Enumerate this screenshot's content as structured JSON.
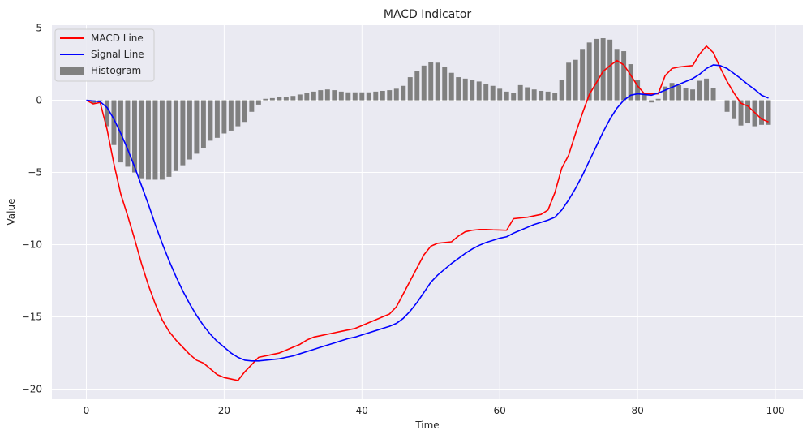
{
  "chart_data": {
    "type": "line",
    "title": "MACD Indicator",
    "xlabel": "Time",
    "ylabel": "Value",
    "xlim": [
      -5,
      104
    ],
    "ylim": [
      -20.7,
      5.2
    ],
    "xticks": [
      0,
      20,
      40,
      60,
      80,
      100
    ],
    "yticks": [
      5,
      0,
      -5,
      -10,
      -15,
      -20
    ],
    "ytick_labels": [
      "5",
      "0",
      "−5",
      "−10",
      "−15",
      "−20"
    ],
    "grid": true,
    "legend_position": "top-left",
    "x": [
      0,
      1,
      2,
      3,
      4,
      5,
      6,
      7,
      8,
      9,
      10,
      11,
      12,
      13,
      14,
      15,
      16,
      17,
      18,
      19,
      20,
      21,
      22,
      23,
      24,
      25,
      26,
      27,
      28,
      29,
      30,
      31,
      32,
      33,
      34,
      35,
      36,
      37,
      38,
      39,
      40,
      41,
      42,
      43,
      44,
      45,
      46,
      47,
      48,
      49,
      50,
      51,
      52,
      53,
      54,
      55,
      56,
      57,
      58,
      59,
      60,
      61,
      62,
      63,
      64,
      65,
      66,
      67,
      68,
      69,
      70,
      71,
      72,
      73,
      74,
      75,
      76,
      77,
      78,
      79,
      80,
      81,
      82,
      83,
      84,
      85,
      86,
      87,
      88,
      89,
      90,
      91,
      92,
      93,
      94,
      95,
      96,
      97,
      98,
      99
    ],
    "series": [
      {
        "name": "MACD Line",
        "kind": "line",
        "color": "#ff0000",
        "values": [
          0.0,
          -0.25,
          -0.15,
          -2.0,
          -4.4,
          -6.5,
          -8.0,
          -9.6,
          -11.3,
          -12.8,
          -14.1,
          -15.2,
          -16.0,
          -16.6,
          -17.1,
          -17.6,
          -18.0,
          -18.2,
          -18.6,
          -19.0,
          -19.2,
          -19.3,
          -19.4,
          -18.8,
          -18.3,
          -17.8,
          -17.7,
          -17.6,
          -17.5,
          -17.3,
          -17.1,
          -16.9,
          -16.6,
          -16.4,
          -16.3,
          -16.2,
          -16.1,
          -16.0,
          -15.9,
          -15.8,
          -15.6,
          -15.4,
          -15.2,
          -15.0,
          -14.8,
          -14.3,
          -13.4,
          -12.5,
          -11.6,
          -10.7,
          -10.1,
          -9.9,
          -9.85,
          -9.8,
          -9.4,
          -9.1,
          -9.0,
          -8.95,
          -8.95,
          -8.97,
          -8.98,
          -9.0,
          -8.2,
          -8.15,
          -8.1,
          -8.0,
          -7.9,
          -7.6,
          -6.4,
          -4.7,
          -3.8,
          -2.3,
          -0.9,
          0.4,
          1.2,
          2.0,
          2.4,
          2.75,
          2.45,
          1.75,
          1.0,
          0.45,
          0.45,
          0.45,
          1.7,
          2.2,
          2.3,
          2.35,
          2.4,
          3.2,
          3.75,
          3.3,
          2.25,
          1.3,
          0.5,
          -0.2,
          -0.4,
          -0.85,
          -1.3,
          -1.5
        ]
      },
      {
        "name": "Signal Line",
        "kind": "line",
        "color": "#0000ff",
        "values": [
          0.0,
          -0.05,
          -0.1,
          -0.5,
          -1.3,
          -2.3,
          -3.4,
          -4.6,
          -5.9,
          -7.2,
          -8.6,
          -9.9,
          -11.1,
          -12.2,
          -13.2,
          -14.1,
          -14.9,
          -15.6,
          -16.2,
          -16.7,
          -17.1,
          -17.5,
          -17.8,
          -18.0,
          -18.05,
          -18.05,
          -18.0,
          -17.95,
          -17.9,
          -17.8,
          -17.7,
          -17.55,
          -17.4,
          -17.25,
          -17.1,
          -16.95,
          -16.8,
          -16.65,
          -16.5,
          -16.4,
          -16.25,
          -16.1,
          -15.95,
          -15.8,
          -15.65,
          -15.45,
          -15.1,
          -14.6,
          -14.0,
          -13.3,
          -12.6,
          -12.1,
          -11.7,
          -11.3,
          -10.95,
          -10.6,
          -10.3,
          -10.05,
          -9.85,
          -9.7,
          -9.55,
          -9.45,
          -9.2,
          -9.0,
          -8.8,
          -8.6,
          -8.45,
          -8.3,
          -8.1,
          -7.6,
          -6.9,
          -6.1,
          -5.2,
          -4.2,
          -3.2,
          -2.2,
          -1.3,
          -0.55,
          0.0,
          0.35,
          0.45,
          0.4,
          0.35,
          0.5,
          0.7,
          0.9,
          1.1,
          1.3,
          1.5,
          1.8,
          2.2,
          2.45,
          2.4,
          2.2,
          1.85,
          1.5,
          1.1,
          0.75,
          0.35,
          0.15
        ]
      },
      {
        "name": "Histogram",
        "kind": "bar",
        "color": "#808080",
        "values": [
          0.0,
          -0.2,
          -0.05,
          -1.8,
          -3.1,
          -4.3,
          -4.6,
          -5.0,
          -5.4,
          -5.5,
          -5.5,
          -5.5,
          -5.3,
          -4.9,
          -4.5,
          -4.1,
          -3.7,
          -3.3,
          -2.8,
          -2.6,
          -2.3,
          -2.1,
          -1.8,
          -1.5,
          -0.8,
          -0.3,
          0.1,
          0.15,
          0.2,
          0.25,
          0.3,
          0.4,
          0.5,
          0.6,
          0.7,
          0.75,
          0.7,
          0.6,
          0.55,
          0.55,
          0.55,
          0.55,
          0.6,
          0.65,
          0.7,
          0.8,
          1.0,
          1.6,
          2.0,
          2.4,
          2.65,
          2.6,
          2.3,
          1.9,
          1.6,
          1.5,
          1.4,
          1.3,
          1.1,
          1.0,
          0.8,
          0.6,
          0.5,
          1.05,
          0.9,
          0.75,
          0.65,
          0.6,
          0.5,
          1.4,
          2.6,
          2.8,
          3.5,
          4.0,
          4.25,
          4.3,
          4.2,
          3.5,
          3.4,
          2.5,
          1.4,
          0.5,
          -0.15,
          0.1,
          0.95,
          1.2,
          1.05,
          0.85,
          0.75,
          1.35,
          1.5,
          0.85,
          0.0,
          -0.8,
          -1.3,
          -1.75,
          -1.6,
          -1.8,
          -1.7,
          -1.7
        ]
      }
    ]
  }
}
